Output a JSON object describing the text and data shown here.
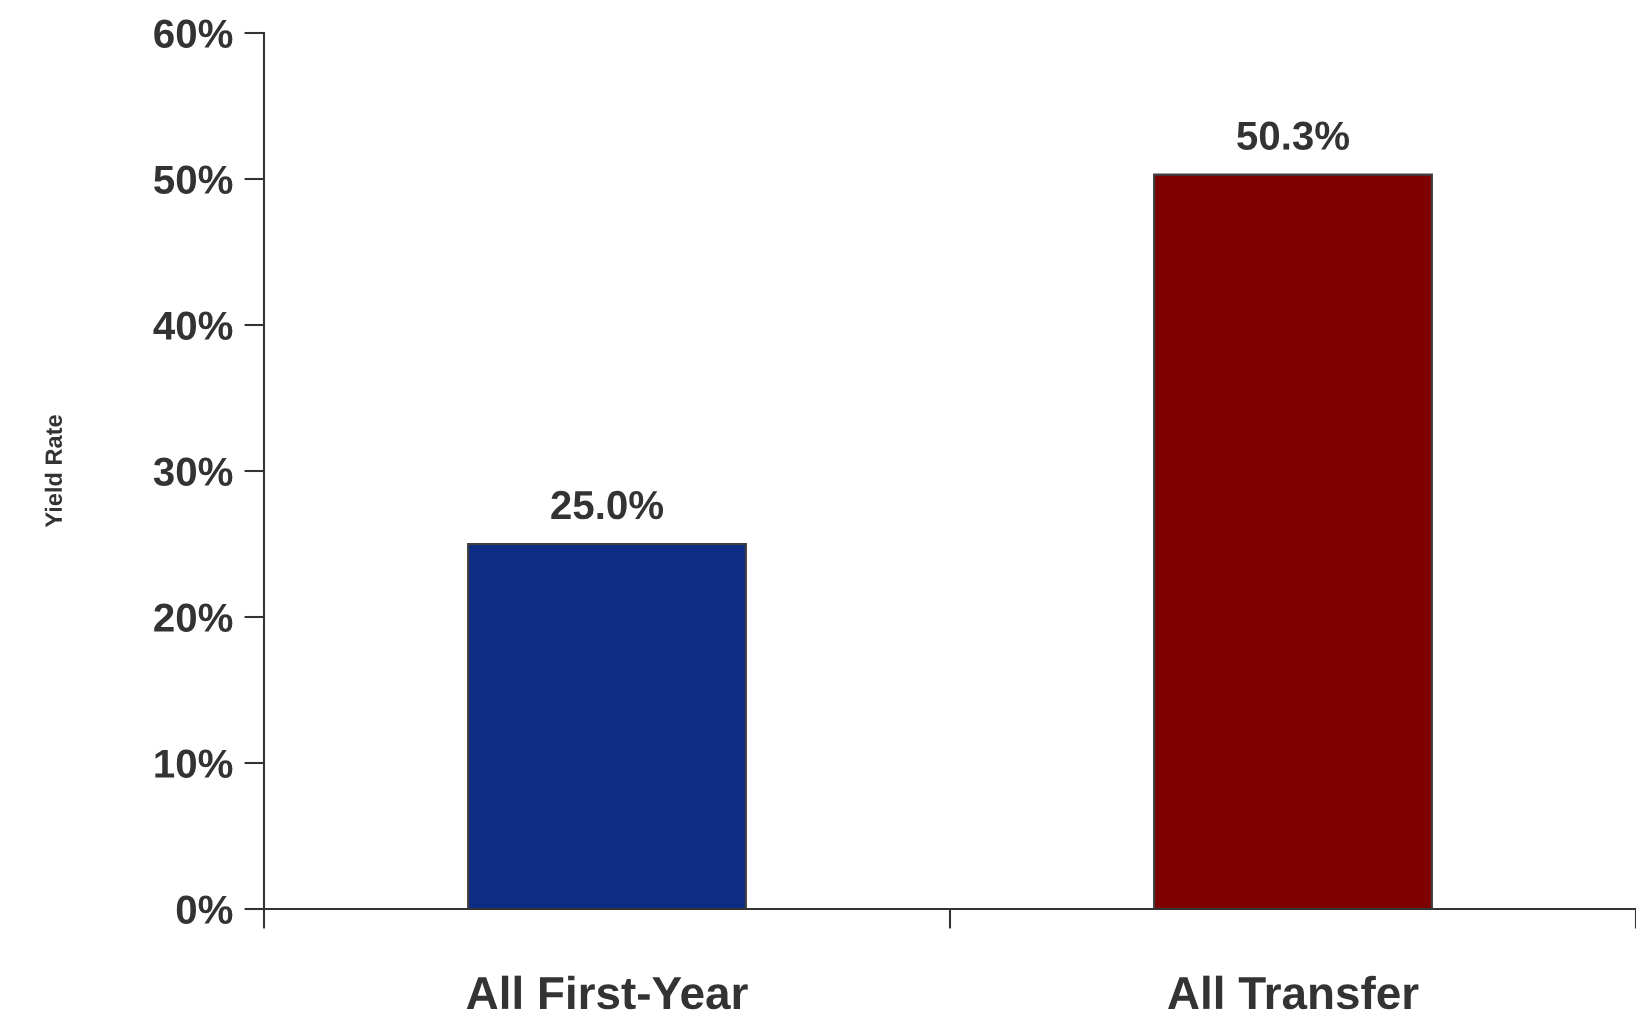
{
  "chart_data": {
    "type": "bar",
    "ylabel": "Yield Rate",
    "categories": [
      "All First-Year",
      "All Transfer"
    ],
    "values": [
      25.0,
      50.3
    ],
    "colors": [
      "#0d2d84",
      "#7f0000"
    ],
    "value_labels": [
      "25.0%",
      "50.3%"
    ],
    "ylim": [
      0,
      60
    ],
    "yticks": [
      {
        "value": 0,
        "label": "0%"
      },
      {
        "value": 10,
        "label": "10%"
      },
      {
        "value": 20,
        "label": "20%"
      },
      {
        "value": 30,
        "label": "30%"
      },
      {
        "value": 40,
        "label": "40%"
      },
      {
        "value": 50,
        "label": "50%"
      },
      {
        "value": 60,
        "label": "60%"
      }
    ],
    "grid": false,
    "legend": false
  }
}
